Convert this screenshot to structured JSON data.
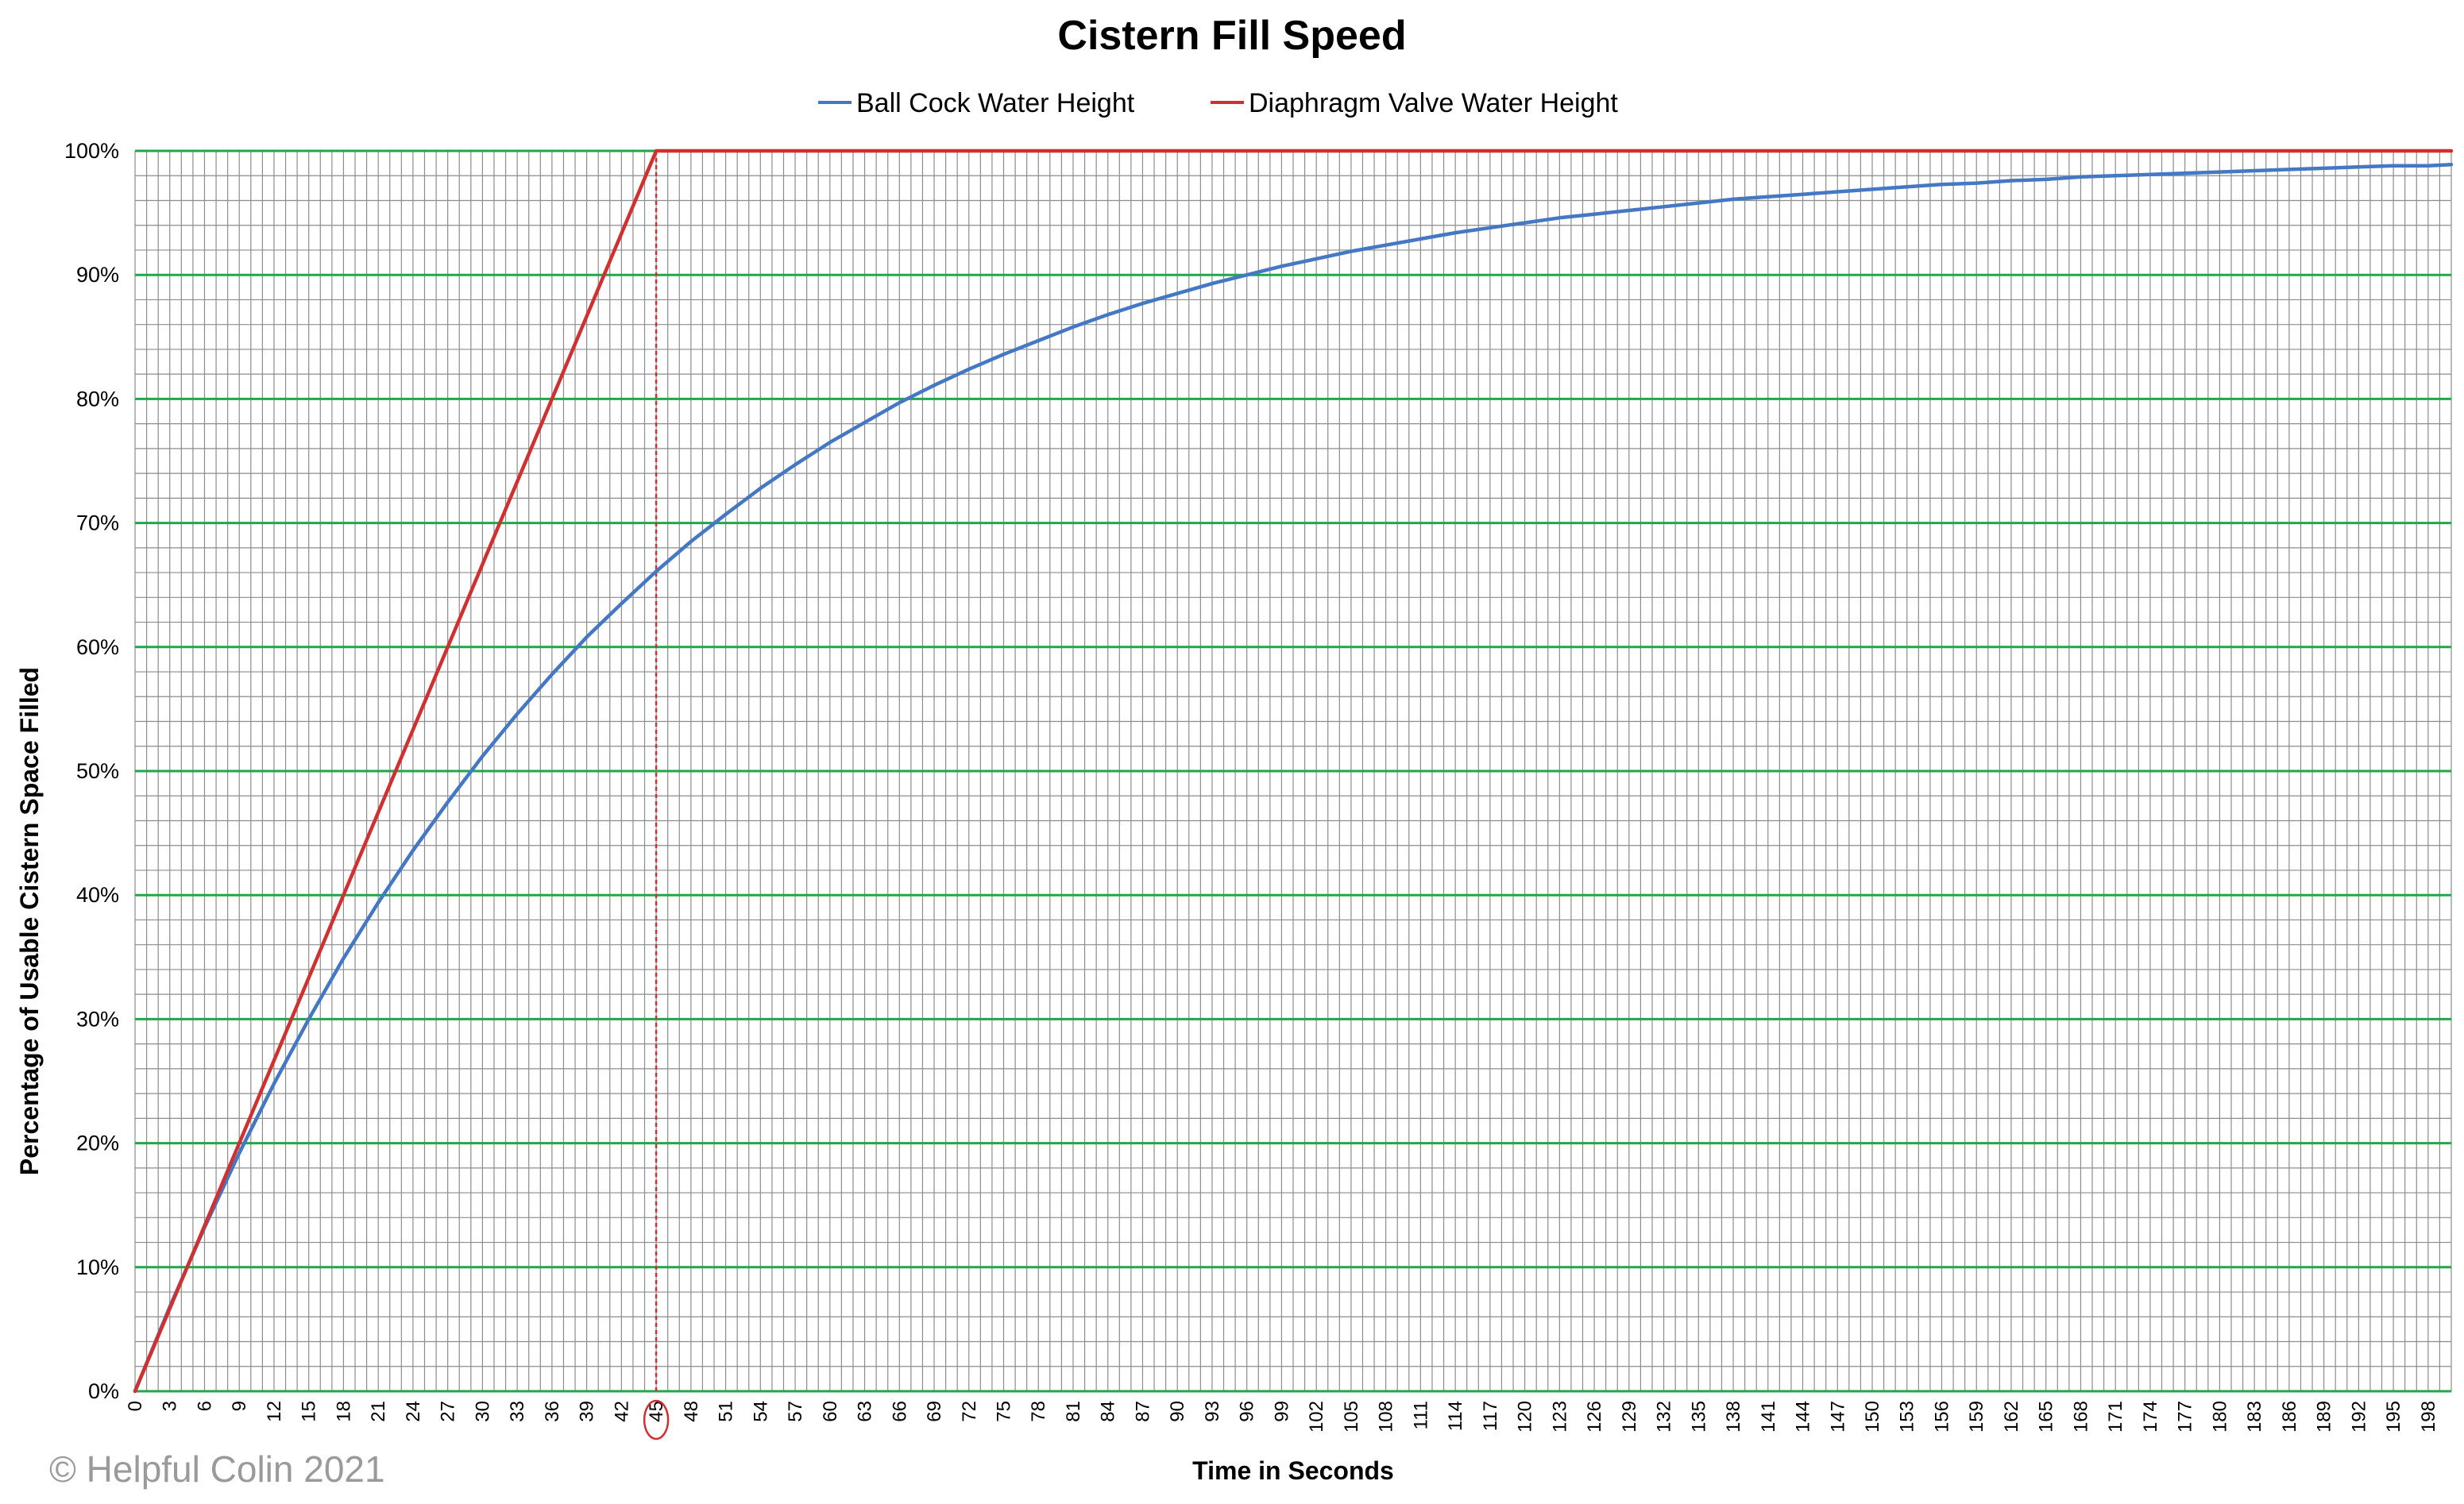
{
  "chart_data": {
    "type": "line",
    "title": "Cistern Fill Speed",
    "xlabel": "Time in Seconds",
    "ylabel": "Percentage of Usable Cistern Space Filled",
    "xlim": [
      0,
      200
    ],
    "ylim": [
      0,
      100
    ],
    "x_tick_step": 3,
    "x_tick_last": 198,
    "y_ticks": [
      "0%",
      "10%",
      "20%",
      "30%",
      "40%",
      "50%",
      "60%",
      "70%",
      "80%",
      "90%",
      "100%"
    ],
    "grid": true,
    "legend_position": "top-center",
    "highlighted_x": 45,
    "series": [
      {
        "name": "Ball Cock Water Height",
        "color": "#4477c4",
        "x": [
          0,
          3,
          6,
          9,
          12,
          15,
          18,
          21,
          24,
          27,
          30,
          33,
          36,
          39,
          42,
          45,
          48,
          51,
          54,
          57,
          60,
          63,
          66,
          69,
          72,
          75,
          78,
          81,
          84,
          87,
          90,
          93,
          96,
          99,
          102,
          105,
          108,
          111,
          114,
          117,
          120,
          123,
          126,
          129,
          132,
          135,
          138,
          141,
          144,
          147,
          150,
          153,
          156,
          159,
          162,
          165,
          168,
          171,
          174,
          177,
          180,
          183,
          186,
          189,
          192,
          195,
          198,
          200
        ],
        "values": [
          0,
          6.8,
          13.2,
          19.2,
          24.8,
          30.0,
          34.9,
          39.4,
          43.6,
          47.5,
          51.2,
          54.6,
          57.8,
          60.8,
          63.5,
          66.1,
          68.5,
          70.7,
          72.8,
          74.7,
          76.5,
          78.1,
          79.7,
          81.1,
          82.4,
          83.6,
          84.7,
          85.8,
          86.8,
          87.7,
          88.5,
          89.3,
          90.0,
          90.7,
          91.3,
          91.9,
          92.4,
          92.9,
          93.4,
          93.8,
          94.2,
          94.6,
          94.9,
          95.2,
          95.5,
          95.8,
          96.1,
          96.3,
          96.5,
          96.7,
          96.9,
          97.1,
          97.3,
          97.4,
          97.6,
          97.7,
          97.9,
          98.0,
          98.1,
          98.2,
          98.3,
          98.4,
          98.5,
          98.6,
          98.7,
          98.8,
          98.8,
          98.9
        ]
      },
      {
        "name": "Diaphragm Valve Water Height",
        "color": "#d03030",
        "x": [
          0,
          45,
          200
        ],
        "values": [
          0,
          100,
          100
        ]
      }
    ]
  },
  "footer": {
    "copyright": "© Helpful Colin 2021"
  }
}
